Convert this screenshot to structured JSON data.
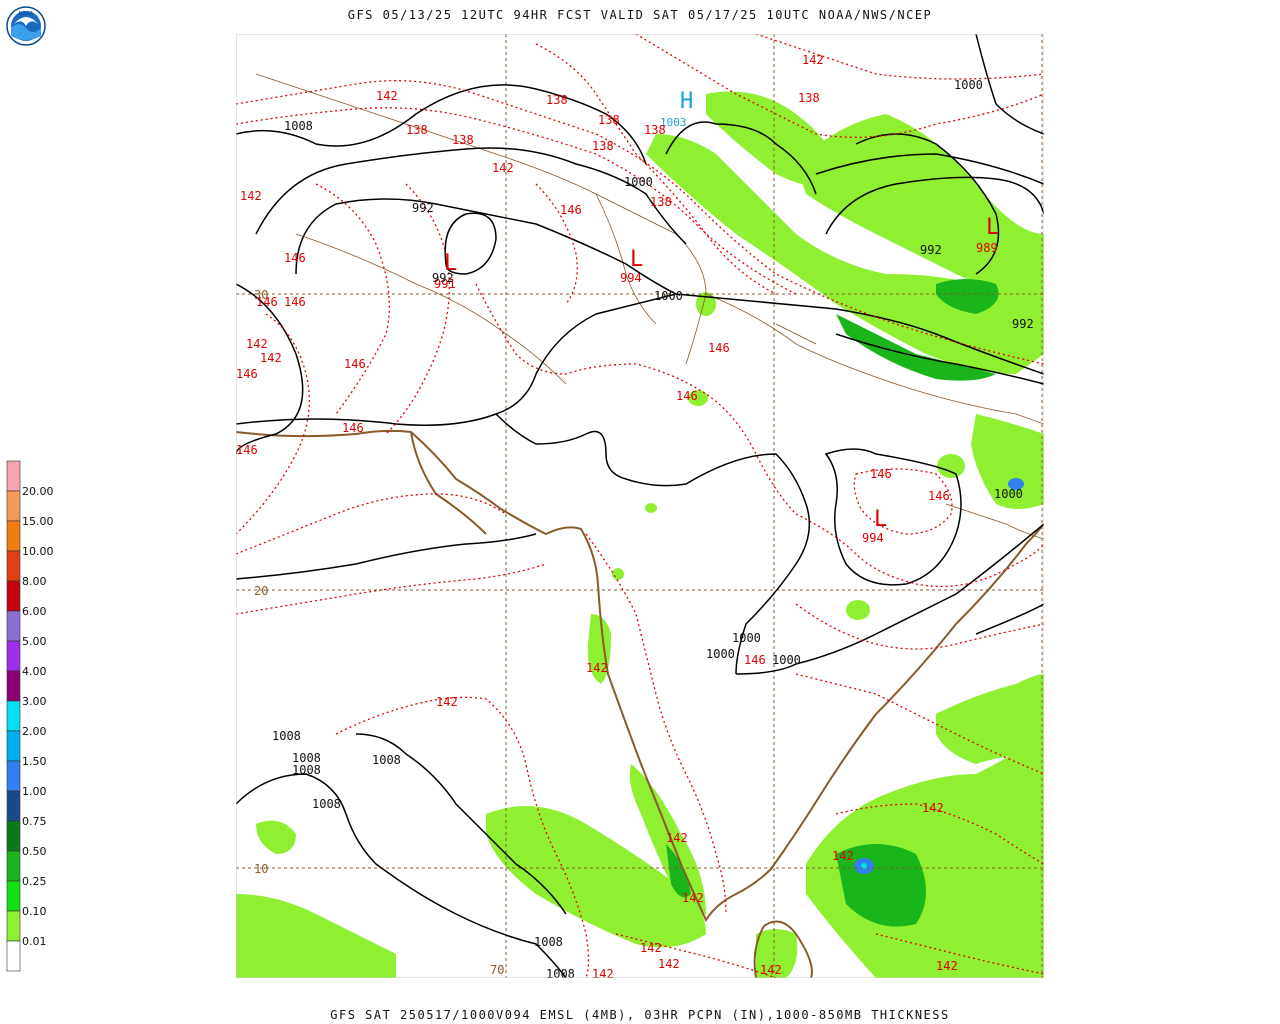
{
  "title": "GFS 05/13/25 12UTC 94HR FCST VALID SAT 05/17/25 10UTC NOAA/NWS/NCEP",
  "caption": "GFS SAT 250517/1000V094 EMSL (4MB), 03HR PCPN (IN),1000-850MB THICKNESS",
  "logo": {
    "icon": "noaa-logo",
    "text": "NOAA"
  },
  "legend": {
    "items": [
      {
        "label": "20.00",
        "color": "#f4a6b0"
      },
      {
        "label": "15.00",
        "color": "#f49a58"
      },
      {
        "label": "10.00",
        "color": "#f07c12"
      },
      {
        "label": "8.00",
        "color": "#e04010"
      },
      {
        "label": "6.00",
        "color": "#c80010"
      },
      {
        "label": "5.00",
        "color": "#8a70d0"
      },
      {
        "label": "4.00",
        "color": "#9a30e8"
      },
      {
        "label": "3.00",
        "color": "#8a0070"
      },
      {
        "label": "2.00",
        "color": "#00e0f0"
      },
      {
        "label": "1.50",
        "color": "#00b0f0"
      },
      {
        "label": "1.00",
        "color": "#3080f0"
      },
      {
        "label": "0.75",
        "color": "#1a4a8a"
      },
      {
        "label": "0.50",
        "color": "#0a7a1a"
      },
      {
        "label": "0.25",
        "color": "#19b51a"
      },
      {
        "label": "0.10",
        "color": "#12e012"
      },
      {
        "label": "0.01",
        "color": "#8ef030"
      },
      {
        "label": "",
        "color": "#ffffff"
      }
    ]
  },
  "map": {
    "grid_labels": [
      {
        "text": "30"
      },
      {
        "text": "20"
      },
      {
        "text": "10"
      },
      {
        "text": "70"
      }
    ],
    "centers": [
      {
        "type": "H",
        "value": "1003"
      },
      {
        "type": "L",
        "value": "991"
      },
      {
        "type": "L",
        "value": "994"
      },
      {
        "type": "L",
        "value": "989"
      },
      {
        "type": "L",
        "value": "994"
      }
    ],
    "isobar_labels": [
      "1008",
      "992",
      "992",
      "1000",
      "1000",
      "1000",
      "992",
      "992",
      "1000",
      "1000",
      "1000",
      "1000",
      "1008",
      "1008",
      "1008",
      "1008",
      "1008",
      "1008",
      "1008"
    ],
    "thickness_labels": [
      "142",
      "142",
      "138",
      "138",
      "138",
      "138",
      "138",
      "138",
      "138",
      "142",
      "146",
      "138",
      "142",
      "146",
      "146",
      "146",
      "142",
      "142",
      "146",
      "146",
      "146",
      "146",
      "146",
      "146",
      "146",
      "146",
      "142",
      "146",
      "142",
      "142",
      "142",
      "142",
      "142",
      "142",
      "142",
      "142",
      "142",
      "142"
    ]
  }
}
